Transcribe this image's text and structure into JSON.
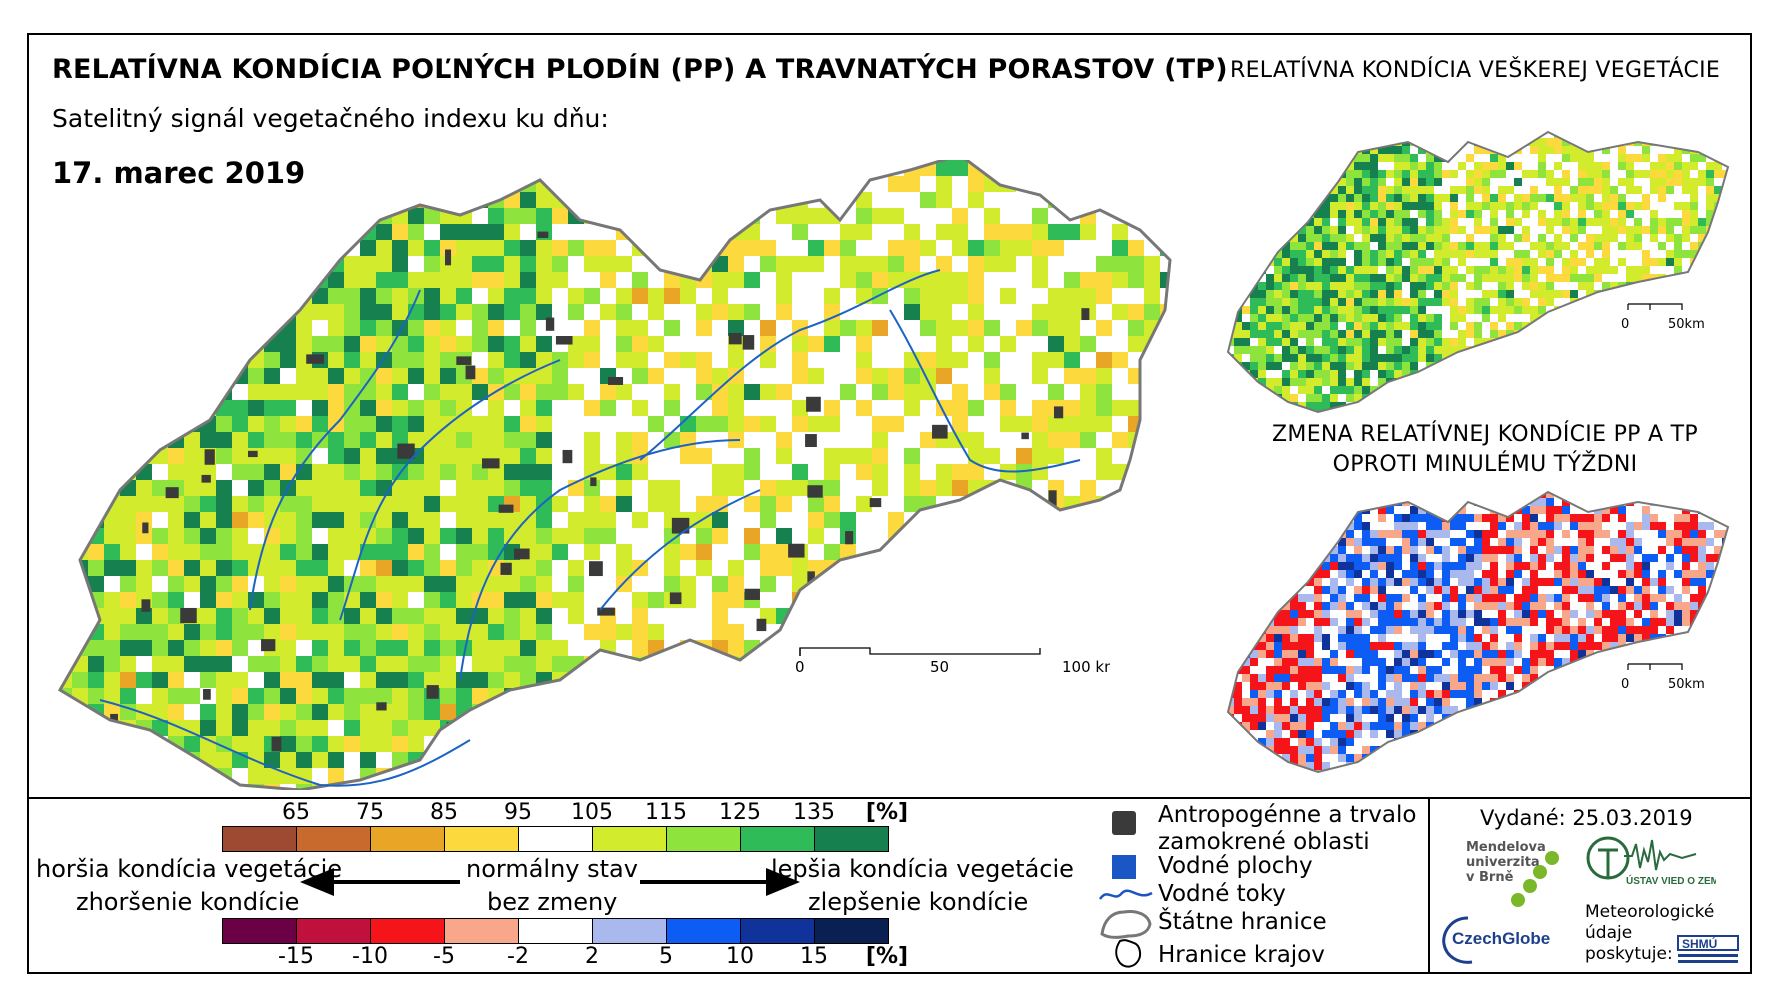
{
  "header": {
    "title": "RELATÍVNA KONDÍCIA POĽNÝCH PLODÍN (PP) A TRAVNATÝCH PORASTOV (TP)",
    "subtitle": "Satelitný signál vegetačného indexu ku dňu:",
    "date": "17. marec 2019"
  },
  "inset_top": {
    "title": "RELATÍVNA KONDÍCIA VEŠKEREJ VEGETÁCIE",
    "scale": [
      "0",
      "50km"
    ]
  },
  "inset_bottom": {
    "title_line1": "ZMENA RELATÍVNEJ KONDÍCIE PP A TP",
    "title_line2": "OPROTI MINULÉMU TÝŽDNI",
    "scale": [
      "0",
      "50km"
    ]
  },
  "main_map": {
    "scale": [
      "0",
      "50",
      "100 km"
    ]
  },
  "legend": {
    "condition_ticks": [
      "65",
      "75",
      "85",
      "95",
      "105",
      "115",
      "125",
      "135"
    ],
    "condition_unit": "[%]",
    "condition_colors": [
      "#9e4a32",
      "#c8692e",
      "#e8a526",
      "#fcd93d",
      "#ffffff",
      "#d2ec2d",
      "#8ee43c",
      "#2fbb58",
      "#16804e"
    ],
    "change_ticks": [
      "-15",
      "-10",
      "-5",
      "-2",
      "2",
      "5",
      "10",
      "15"
    ],
    "change_unit": "[%]",
    "change_colors": [
      "#6b0046",
      "#c0103e",
      "#f6141b",
      "#f9a78a",
      "#ffffff",
      "#a9b9ee",
      "#0d5cf3",
      "#10339b",
      "#0a1f52"
    ],
    "worse_line1": "horšia kondícia vegetácie",
    "worse_line2": "zhoršenie kondície",
    "normal_line1": "normálny stav",
    "normal_line2": "bez zmeny",
    "better_line1": "lepšia kondícia vegetácie",
    "better_line2": "zlepšenie kondície",
    "items": {
      "anthropogenic": "Antropogénne a trvalo zamokrené oblasti",
      "water_bodies": "Vodné plochy",
      "water_courses": "Vodné toky",
      "state_border": "Štátne hranice",
      "region_border": "Hranice krajov"
    }
  },
  "footer": {
    "issued": "Vydané: 25.03.2019",
    "mendel": [
      "Mendelova",
      "univerzita",
      "v Brně"
    ],
    "czechglobe": "CzechGlobe",
    "uvz": "ÚSTAV VIED O ZEMI",
    "meteo": [
      "Meteorologické",
      "údaje",
      "poskytuje:"
    ],
    "shmu": "SHMÚ"
  }
}
